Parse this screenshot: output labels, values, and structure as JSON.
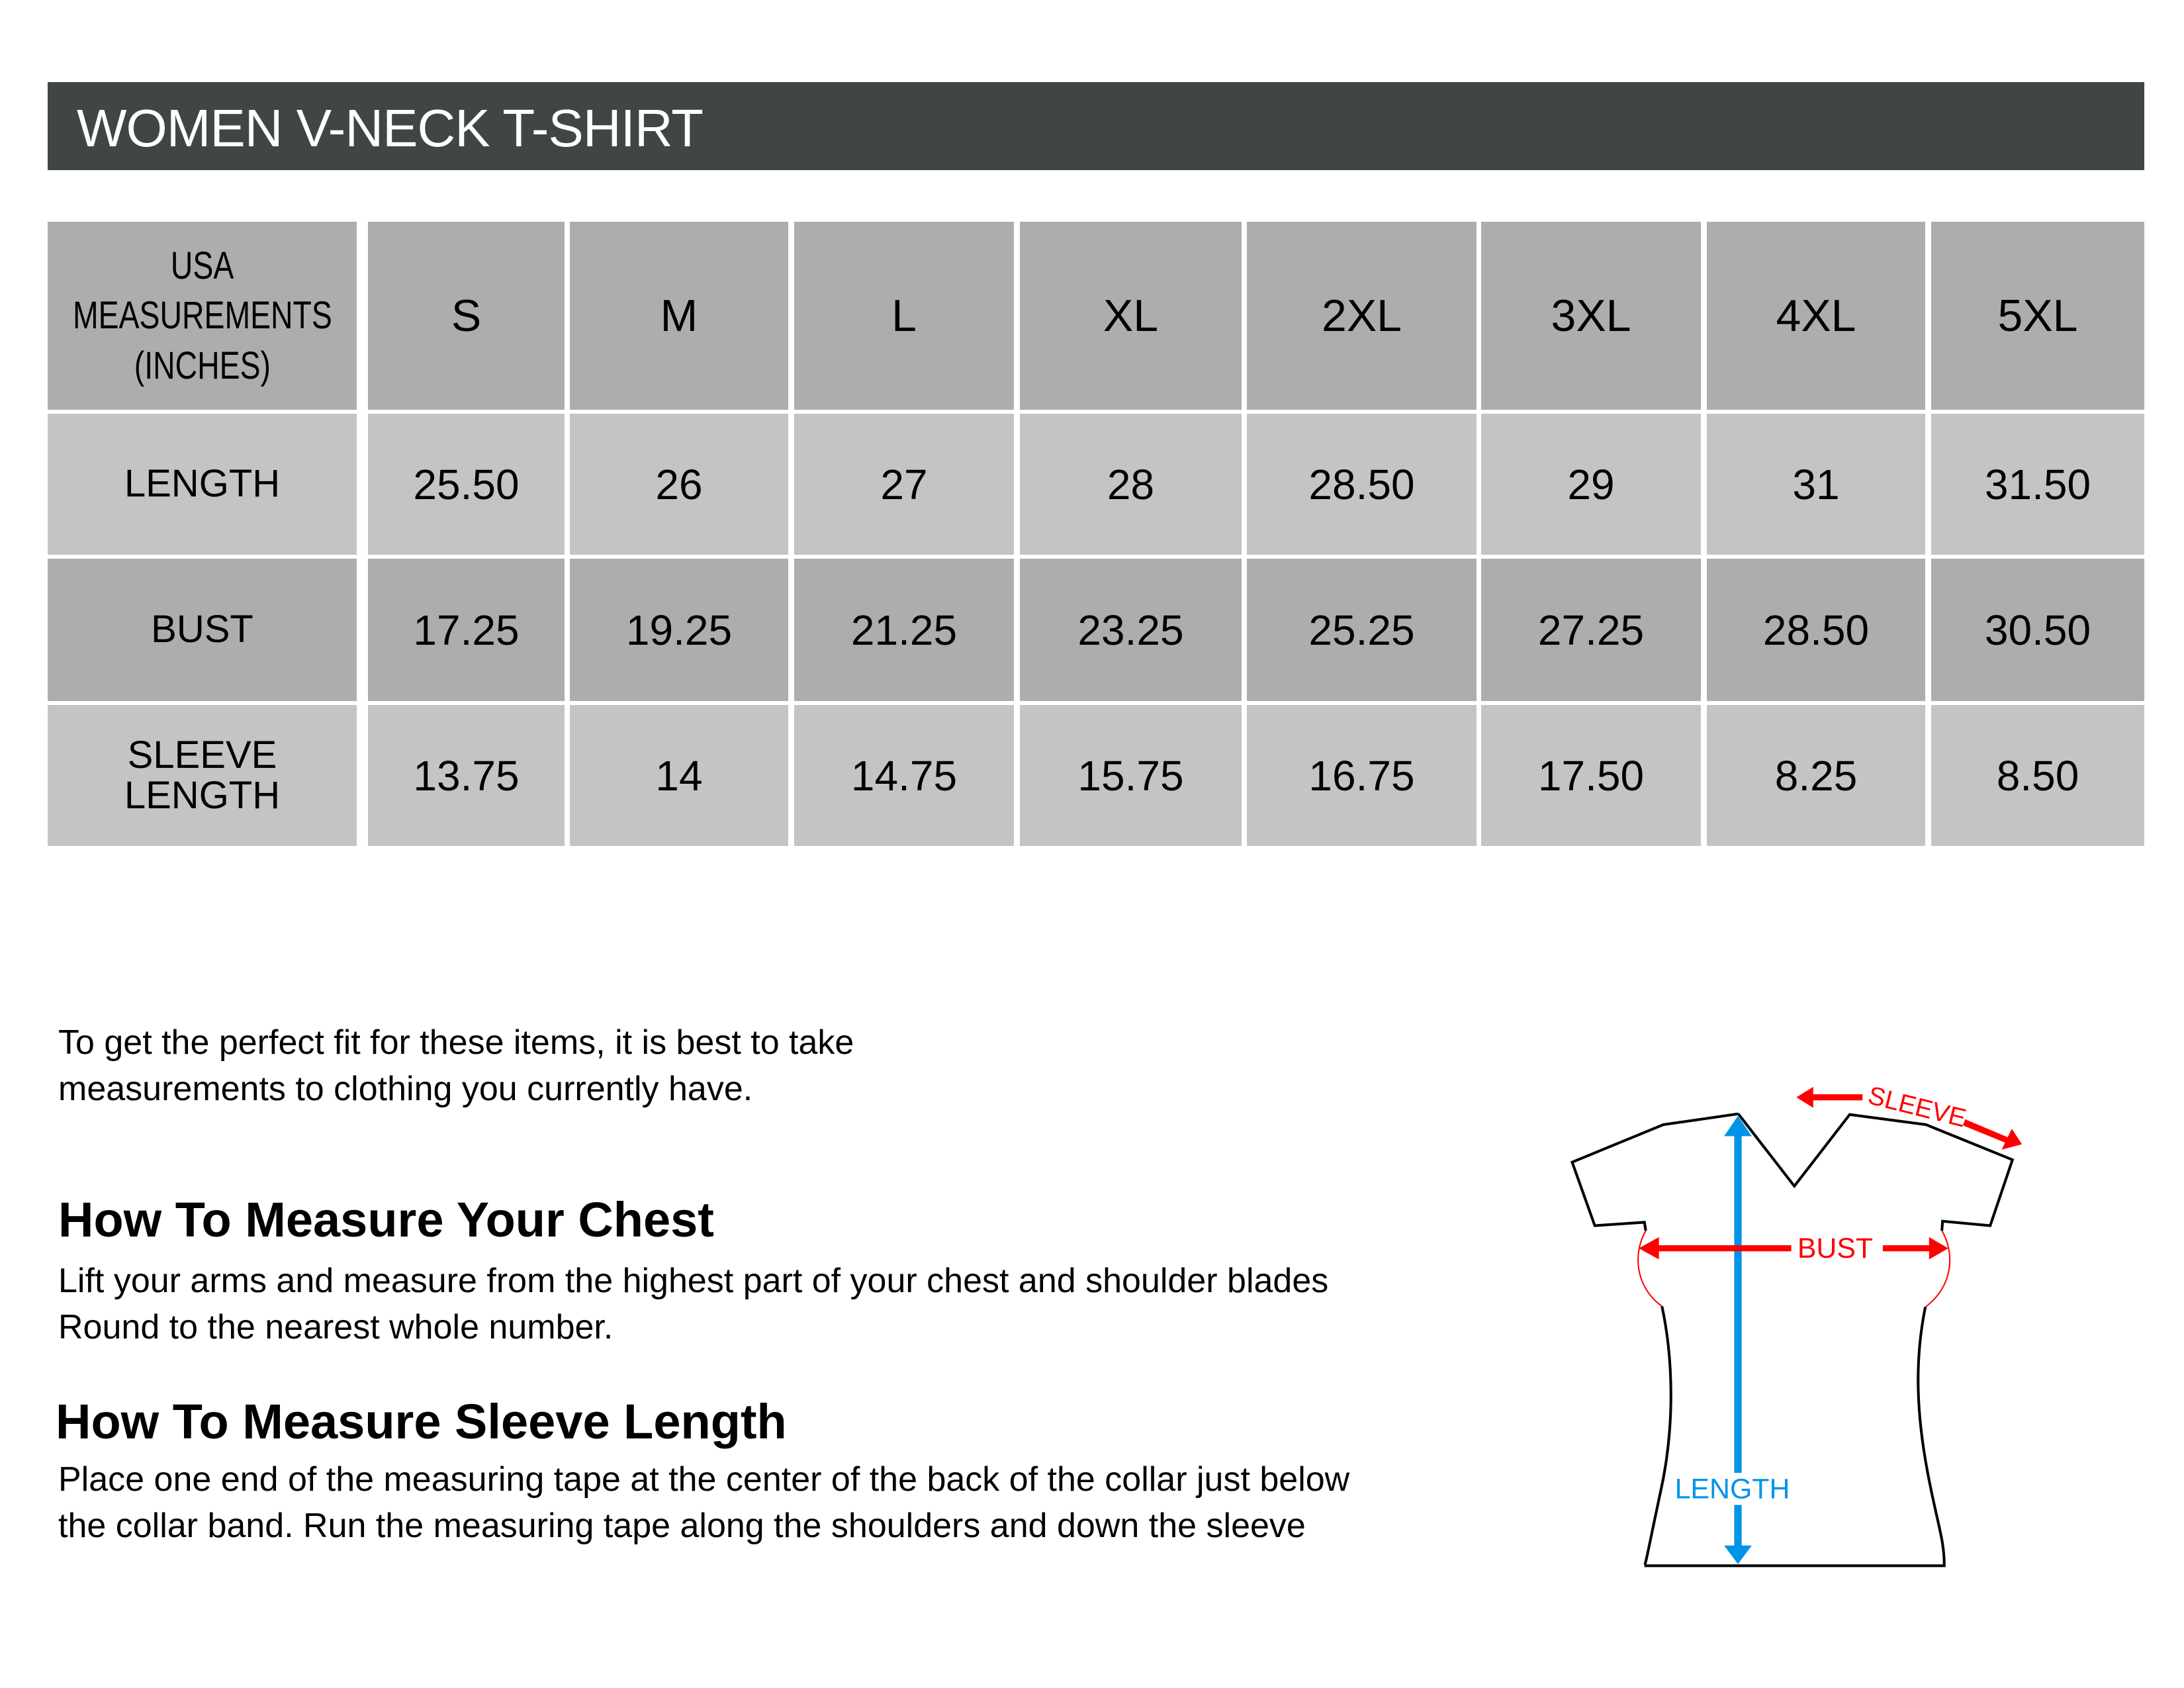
{
  "title": "WOMEN V-NECK T-SHIRT",
  "table": {
    "corner_label": [
      "USA",
      "MEASUREMENTS",
      "(INCHES)"
    ],
    "sizes": [
      "S",
      "M",
      "L",
      "XL",
      "2XL",
      "3XL",
      "4XL",
      "5XL"
    ],
    "rows": [
      {
        "label": "LENGTH",
        "values": [
          "25.50",
          "26",
          "27",
          "28",
          "28.50",
          "29",
          "31",
          "31.50"
        ]
      },
      {
        "label": "BUST",
        "values": [
          "17.25",
          "19.25",
          "21.25",
          "23.25",
          "25.25",
          "27.25",
          "28.50",
          "30.50"
        ]
      },
      {
        "label": "SLEEVE LENGTH",
        "values": [
          "13.75",
          "14",
          "14.75",
          "15.75",
          "16.75",
          "17.50",
          "8.25",
          "8.50"
        ]
      }
    ]
  },
  "intro": [
    "To get the perfect fit for these items, it is best to take",
    "measurements to clothing you currently have."
  ],
  "chest": {
    "heading": "How To Measure Your Chest",
    "lines": [
      "Lift your arms and measure from the highest part of your chest and shoulder blades",
      "Round to the nearest whole number."
    ]
  },
  "sleeve": {
    "heading": "How To Measure Sleeve Length",
    "lines": [
      "Place one end of the measuring tape at the center of the back of the collar just below",
      "the collar band. Run the measuring tape along the shoulders and down the sleeve"
    ]
  },
  "diagram": {
    "sleeve_label": "SLEEVE",
    "bust_label": "BUST",
    "length_label": "LENGTH",
    "colors": {
      "measure_red": "#ff0000",
      "length_blue": "#0094e8",
      "outline": "#000000"
    }
  }
}
